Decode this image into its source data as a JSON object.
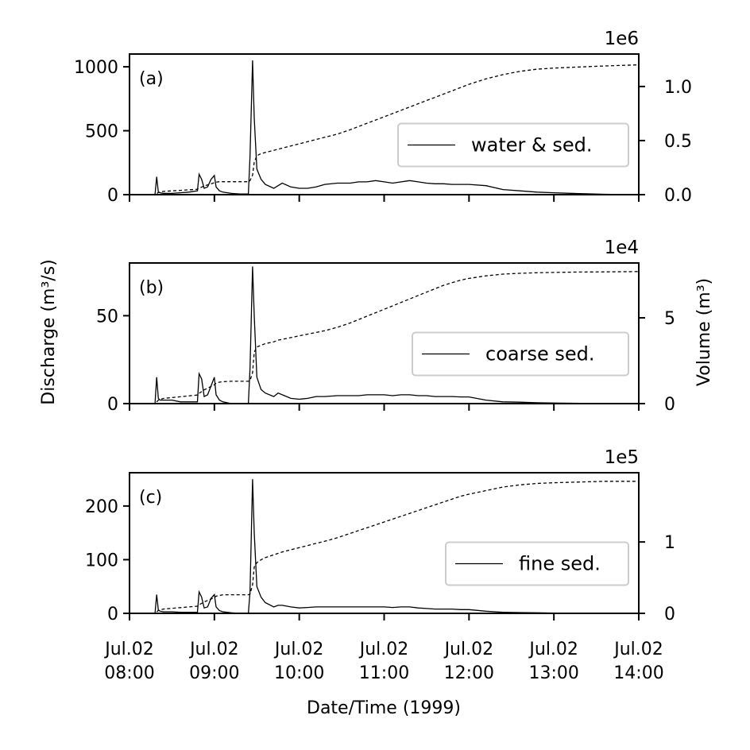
{
  "chart_data": {
    "type": "line",
    "xlabel": "Date/Time (1999)",
    "ylabel_left": "Discharge (m³/s)",
    "ylabel_right": "Volume (m³)",
    "xlim": [
      "1999-07-02T08:00",
      "1999-07-02T14:00"
    ],
    "x_ticks": [
      {
        "line1": "Jul.02",
        "line2": "08:00"
      },
      {
        "line1": "Jul.02",
        "line2": "09:00"
      },
      {
        "line1": "Jul.02",
        "line2": "10:00"
      },
      {
        "line1": "Jul.02",
        "line2": "11:00"
      },
      {
        "line1": "Jul.02",
        "line2": "12:00"
      },
      {
        "line1": "Jul.02",
        "line2": "13:00"
      },
      {
        "line1": "Jul.02",
        "line2": "14:00"
      }
    ],
    "x_hours": [
      8.0,
      8.18,
      8.3,
      8.32,
      8.34,
      8.36,
      8.4,
      8.5,
      8.6,
      8.7,
      8.8,
      8.82,
      8.85,
      8.88,
      8.92,
      8.96,
      9.0,
      9.02,
      9.06,
      9.1,
      9.2,
      9.3,
      9.4,
      9.42,
      9.45,
      9.47,
      9.5,
      9.55,
      9.6,
      9.7,
      9.75,
      9.8,
      9.9,
      10.0,
      10.1,
      10.2,
      10.3,
      10.45,
      10.6,
      10.7,
      10.8,
      10.9,
      11.0,
      11.1,
      11.2,
      11.3,
      11.4,
      11.5,
      11.6,
      11.7,
      11.8,
      11.9,
      12.0,
      12.2,
      12.4,
      12.6,
      12.8,
      13.0,
      13.3,
      13.6,
      14.0
    ],
    "panels": [
      {
        "label": "(a)",
        "legend": "water & sed.",
        "ylim": [
          0,
          1100
        ],
        "yticks": [
          "0",
          "500",
          "1000"
        ],
        "ytick_values": [
          0,
          500,
          1000
        ],
        "y2_multiplier": "1e6",
        "y2lim": [
          0,
          1.3
        ],
        "y2ticks": [
          "0.0",
          "0.5",
          "1.0"
        ],
        "y2tick_values": [
          0,
          0.5,
          1.0
        ],
        "discharge": [
          0,
          0,
          0,
          140,
          20,
          15,
          10,
          10,
          15,
          20,
          30,
          160,
          120,
          50,
          60,
          120,
          150,
          60,
          30,
          20,
          10,
          5,
          5,
          300,
          1050,
          600,
          200,
          120,
          80,
          50,
          70,
          90,
          60,
          50,
          50,
          60,
          80,
          90,
          90,
          100,
          100,
          110,
          100,
          90,
          100,
          110,
          100,
          90,
          85,
          85,
          80,
          80,
          80,
          70,
          40,
          30,
          20,
          15,
          8,
          3,
          0
        ],
        "volume": [
          0,
          0,
          0,
          0.01,
          0.02,
          0.025,
          0.03,
          0.035,
          0.04,
          0.045,
          0.05,
          0.06,
          0.07,
          0.08,
          0.09,
          0.1,
          0.11,
          0.115,
          0.12,
          0.12,
          0.12,
          0.12,
          0.12,
          0.13,
          0.18,
          0.3,
          0.36,
          0.38,
          0.39,
          0.41,
          0.42,
          0.43,
          0.45,
          0.47,
          0.49,
          0.51,
          0.53,
          0.56,
          0.6,
          0.63,
          0.66,
          0.69,
          0.72,
          0.75,
          0.78,
          0.81,
          0.84,
          0.87,
          0.9,
          0.93,
          0.96,
          0.99,
          1.02,
          1.07,
          1.11,
          1.14,
          1.16,
          1.17,
          1.18,
          1.19,
          1.2
        ]
      },
      {
        "label": "(b)",
        "legend": "coarse sed.",
        "ylim": [
          0,
          80
        ],
        "yticks": [
          "0",
          "50"
        ],
        "ytick_values": [
          0,
          50
        ],
        "y2_multiplier": "1e4",
        "y2lim": [
          0,
          8.2
        ],
        "y2ticks": [
          "0",
          "5"
        ],
        "y2tick_values": [
          0,
          5
        ],
        "discharge": [
          0,
          0,
          0,
          15,
          3,
          2,
          2,
          2,
          1,
          1,
          1,
          17,
          14,
          4,
          5,
          10,
          15,
          5,
          2,
          1,
          0,
          0,
          0,
          20,
          78,
          50,
          15,
          8,
          6,
          4,
          6,
          5,
          3,
          2.5,
          3,
          4,
          4,
          4.5,
          4.5,
          4.5,
          5,
          5,
          5,
          4.5,
          5,
          5,
          4.5,
          4.5,
          4,
          4,
          4,
          3.8,
          3.8,
          2,
          1,
          0.8,
          0.5,
          0.3,
          0.2,
          0.1,
          0
        ],
        "volume": [
          0,
          0,
          0,
          0.1,
          0.2,
          0.25,
          0.3,
          0.35,
          0.4,
          0.45,
          0.5,
          0.6,
          0.7,
          0.8,
          0.9,
          1.0,
          1.1,
          1.2,
          1.25,
          1.28,
          1.3,
          1.3,
          1.3,
          1.35,
          1.8,
          3.0,
          3.3,
          3.4,
          3.5,
          3.6,
          3.7,
          3.75,
          3.85,
          3.95,
          4.05,
          4.15,
          4.25,
          4.45,
          4.7,
          4.9,
          5.1,
          5.3,
          5.5,
          5.7,
          5.9,
          6.1,
          6.3,
          6.5,
          6.7,
          6.9,
          7.05,
          7.2,
          7.3,
          7.45,
          7.55,
          7.6,
          7.63,
          7.65,
          7.67,
          7.68,
          7.7
        ]
      },
      {
        "label": "(c)",
        "legend": "fine sed.",
        "ylim": [
          0,
          262
        ],
        "yticks": [
          "0",
          "100",
          "200"
        ],
        "ytick_values": [
          0,
          100,
          200
        ],
        "y2_multiplier": "1e5",
        "y2lim": [
          0,
          1.97
        ],
        "y2ticks": [
          "0",
          "1"
        ],
        "y2tick_values": [
          0,
          1
        ],
        "discharge": [
          0,
          0,
          0,
          35,
          6,
          4,
          3,
          3,
          2,
          2,
          2,
          40,
          30,
          10,
          12,
          28,
          35,
          12,
          5,
          3,
          1,
          0,
          0,
          40,
          250,
          150,
          50,
          30,
          20,
          12,
          15,
          15,
          12,
          10,
          11,
          12,
          12,
          12,
          12,
          12,
          12,
          12,
          12,
          11,
          12,
          12,
          10,
          9,
          8,
          8,
          8,
          7,
          7,
          4,
          2,
          1.5,
          1,
          0.5,
          0.3,
          0.1,
          0
        ],
        "volume": [
          0,
          0,
          0,
          0.02,
          0.04,
          0.05,
          0.06,
          0.07,
          0.08,
          0.09,
          0.1,
          0.12,
          0.14,
          0.16,
          0.18,
          0.2,
          0.22,
          0.24,
          0.25,
          0.26,
          0.26,
          0.26,
          0.26,
          0.27,
          0.4,
          0.65,
          0.71,
          0.75,
          0.78,
          0.82,
          0.84,
          0.86,
          0.89,
          0.92,
          0.95,
          0.98,
          1.01,
          1.06,
          1.12,
          1.16,
          1.2,
          1.24,
          1.28,
          1.32,
          1.36,
          1.4,
          1.44,
          1.48,
          1.52,
          1.56,
          1.6,
          1.64,
          1.67,
          1.72,
          1.77,
          1.8,
          1.82,
          1.83,
          1.84,
          1.85,
          1.85
        ]
      }
    ]
  }
}
